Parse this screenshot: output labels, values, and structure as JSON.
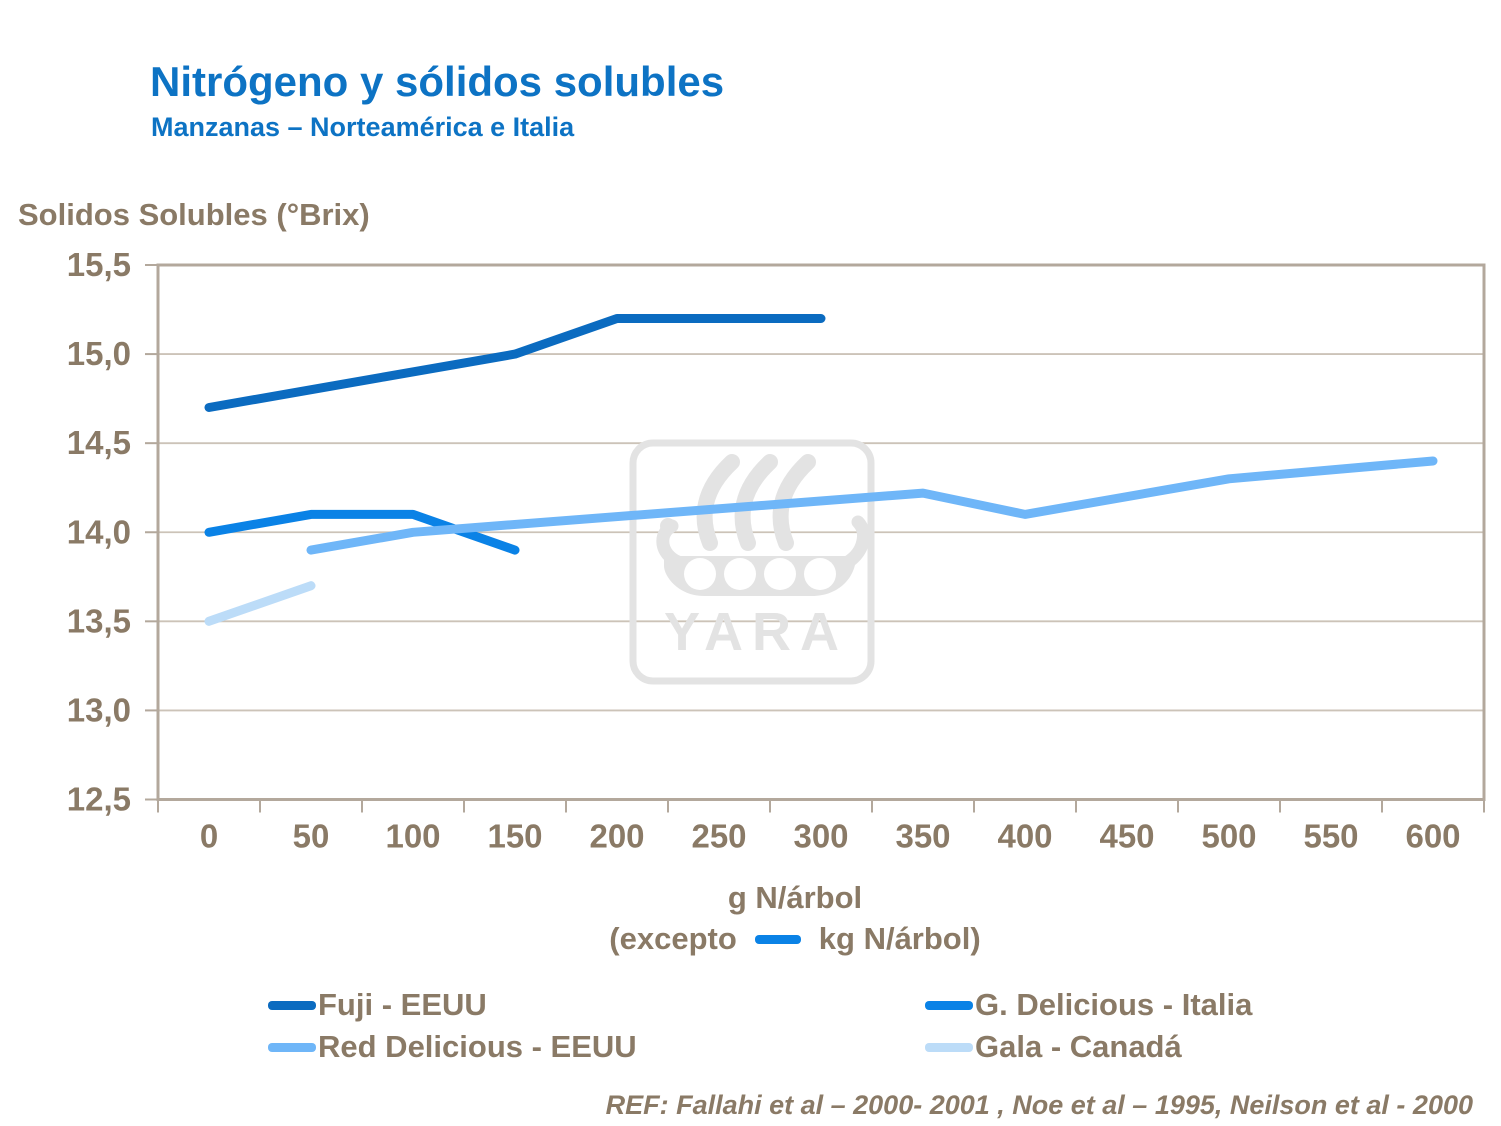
{
  "header": {
    "title": "Nitrógeno y sólidos solubles",
    "subtitle": "Manzanas – Norteamérica e Italia"
  },
  "y_axis_title": "Solidos Solubles (°Brix)",
  "x_axis_note": {
    "prefix": "(excepto",
    "suffix": "kg N/árbol)"
  },
  "footer_ref": "REF: Fallahi et al – 2000- 2001 , Noe et al – 1995, Neilson et al - 2000",
  "watermark": {
    "text": "YARA"
  },
  "colors": {
    "title_blue": "#0d73c4",
    "text_brown": "#8a7a66",
    "grid": "#ccc3b8",
    "axis_border": "#b3a89c",
    "watermark_gray": "#e3e3e3"
  },
  "chart_data": {
    "type": "line",
    "title": "Nitrógeno y sólidos solubles",
    "subtitle": "Manzanas – Norteamérica e Italia",
    "xlabel": "g N/árbol",
    "xlabel_note": "(excepto — kg N/árbol)",
    "ylabel": "Solidos Solubles (°Brix)",
    "xlim": [
      -25,
      625
    ],
    "ylim": [
      12.5,
      15.5
    ],
    "x_ticks": [
      0,
      50,
      100,
      150,
      200,
      250,
      300,
      350,
      400,
      450,
      500,
      550,
      600
    ],
    "y_ticks": [
      12.5,
      13.0,
      13.5,
      14.0,
      14.5,
      15.0,
      15.5
    ],
    "grid": "horizontal",
    "legend_position": "bottom-two-columns",
    "series": [
      {
        "name": "Fuji - EEUU",
        "color": "#0b6bc0",
        "points": [
          [
            0,
            14.7
          ],
          [
            150,
            15.0
          ],
          [
            200,
            15.2
          ],
          [
            300,
            15.2
          ]
        ]
      },
      {
        "name": "G. Delicious - Italia",
        "color": "#0a82e6",
        "points": [
          [
            0,
            14.0
          ],
          [
            50,
            14.1
          ],
          [
            100,
            14.1
          ],
          [
            150,
            13.9
          ]
        ]
      },
      {
        "name": "Red Delicious - EEUU",
        "color": "#6fb6f8",
        "points": [
          [
            50,
            13.9
          ],
          [
            100,
            14.0
          ],
          [
            350,
            14.22
          ],
          [
            400,
            14.1
          ],
          [
            500,
            14.3
          ],
          [
            600,
            14.4
          ]
        ]
      },
      {
        "name": "Gala - Canadá",
        "color": "#bcdcf8",
        "points": [
          [
            0,
            13.5
          ],
          [
            50,
            13.7
          ]
        ]
      }
    ]
  }
}
